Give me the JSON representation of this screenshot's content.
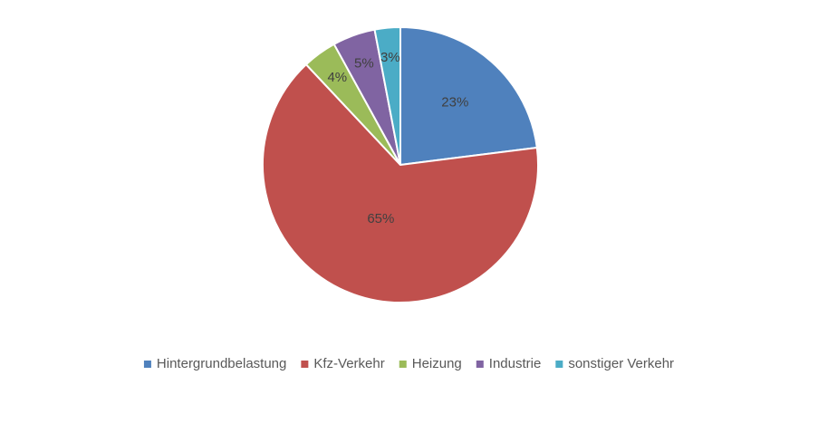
{
  "chart_data": {
    "type": "pie",
    "categories": [
      "Hintergrundbelastung",
      "Kfz-Verkehr",
      "Heizung",
      "Industrie",
      "sonstiger Verkehr"
    ],
    "values": [
      23,
      65,
      4,
      5,
      3
    ],
    "value_labels": [
      "23%",
      "65%",
      "4%",
      "5%",
      "3%"
    ],
    "colors": [
      "#4f81bd",
      "#c0504d",
      "#9bbb59",
      "#8064a2",
      "#4bacc6"
    ],
    "legend": "bottom"
  }
}
